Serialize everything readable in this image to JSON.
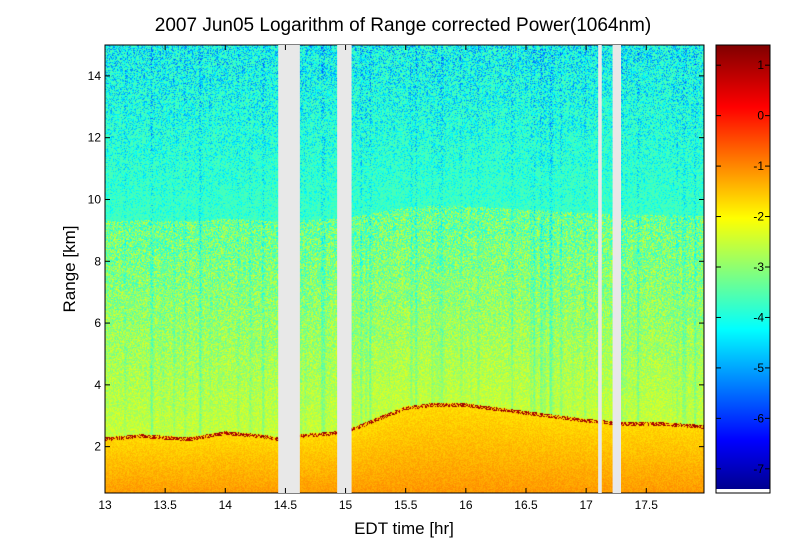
{
  "chart_data": {
    "type": "heatmap",
    "title": "2007 Jun05  Logarithm of Range corrected Power(1064nm)",
    "xlabel": "EDT time [hr]",
    "ylabel": "Range [km]",
    "xlim": [
      13,
      17.98
    ],
    "ylim": [
      0.5,
      15
    ],
    "x_ticks": [
      "13",
      "13.5",
      "14",
      "14.5",
      "15",
      "15.5",
      "16",
      "16.5",
      "17",
      "17.5"
    ],
    "y_ticks": [
      "2",
      "4",
      "6",
      "8",
      "10",
      "12",
      "14"
    ],
    "colorbar": {
      "colormap": "jet",
      "range": [
        -7.4,
        1.4
      ],
      "ticks": [
        "1",
        "0",
        "-1",
        "-2",
        "-3",
        "-4",
        "-5",
        "-6",
        "-7"
      ]
    },
    "data_gaps_hr": [
      [
        14.44,
        14.62
      ],
      [
        14.93,
        15.05
      ],
      [
        17.1,
        17.13
      ],
      [
        17.22,
        17.29
      ]
    ],
    "boundary_layer_top_km": {
      "x": [
        13.0,
        13.3,
        13.7,
        14.0,
        14.3,
        14.44,
        14.62,
        14.93,
        15.05,
        15.3,
        15.5,
        15.7,
        16.0,
        16.2,
        16.4,
        16.6,
        17.0,
        17.3,
        17.6,
        17.98
      ],
      "values": [
        2.3,
        2.4,
        2.3,
        2.5,
        2.4,
        2.3,
        2.4,
        2.5,
        2.6,
        3.0,
        3.3,
        3.4,
        3.4,
        3.3,
        3.2,
        3.1,
        2.9,
        2.8,
        2.8,
        2.7
      ]
    },
    "surface_layer_log_power": [
      -1.6,
      -0.9
    ],
    "free_troposphere_log_power": [
      -3.8,
      -2.4
    ],
    "upper_noise_log_power": [
      -6.5,
      -3.5
    ],
    "cloud_log_power": [
      0.8,
      1.4
    ],
    "grid": false,
    "legend": "none"
  }
}
